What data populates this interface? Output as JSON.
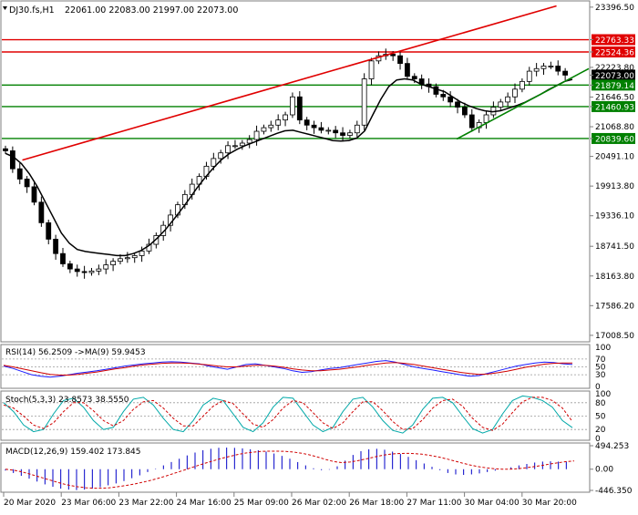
{
  "header": {
    "symbol": "DJ30.fs,H1",
    "ohlc": "22061.00 22083.00 21997.00 22073.00"
  },
  "colors": {
    "frame": "#7f7f7f",
    "candle": "#000000",
    "support": "#008000",
    "resistance": "#e00000",
    "ma": "#000000",
    "rsi": "#1a1aff",
    "rsi_ma": "#d00000",
    "stoch_main": "#00a8a8",
    "stoch_signal": "#d00000",
    "macd_hist": "#0000c8",
    "macd_signal": "#d00000",
    "grid_dotted": "#9a9a9a"
  },
  "chart_data": [
    {
      "type": "candlestick",
      "panel": "main",
      "symbol": "DJ30.fs",
      "timeframe": "H1",
      "last_close": 22073.0,
      "ylim": [
        16900,
        23500
      ],
      "y_ticks": [
        "23396.50",
        "22763.33",
        "22524.36",
        "22223.80",
        "22073.00",
        "21879.14",
        "21646.50",
        "21460.93",
        "21068.80",
        "20839.60",
        "20491.10",
        "19913.80",
        "19336.10",
        "18741.50",
        "18163.80",
        "17586.20",
        "17008.50"
      ],
      "highlighted_levels": [
        {
          "value": 22763.33,
          "label": "22763.33",
          "color": "#e00000",
          "kind": "resistance"
        },
        {
          "value": 22524.36,
          "label": "22524.36",
          "color": "#e00000",
          "kind": "resistance"
        },
        {
          "value": 22073.0,
          "label": "22073.00",
          "color": "#000000",
          "kind": "price"
        },
        {
          "value": 21879.14,
          "label": "21879.14",
          "color": "#008000",
          "kind": "support"
        },
        {
          "value": 21460.93,
          "label": "21460.93",
          "color": "#008000",
          "kind": "support"
        },
        {
          "value": 20839.6,
          "label": "20839.60",
          "color": "#008000",
          "kind": "support"
        }
      ],
      "x_labels": [
        "20 Mar 2020",
        "23 Mar 06:00",
        "23 Mar 22:00",
        "24 Mar 16:00",
        "25 Mar 09:00",
        "26 Mar 02:00",
        "26 Mar 18:00",
        "27 Mar 11:00",
        "30 Mar 04:00",
        "30 Mar 20:00"
      ],
      "trend_lines": [
        {
          "color": "#e00000",
          "from": [
            0.035,
            20420
          ],
          "to": [
            0.945,
            23420
          ]
        },
        {
          "color": "#008000",
          "from": [
            0.775,
            20830
          ],
          "to": [
            1.0,
            22200
          ]
        }
      ],
      "close_path": [
        20600,
        20250,
        20050,
        19900,
        19600,
        19200,
        18880,
        18600,
        18400,
        18300,
        18250,
        18230,
        18260,
        18300,
        18380,
        18450,
        18500,
        18520,
        18560,
        18650,
        18780,
        18950,
        19150,
        19350,
        19550,
        19750,
        19950,
        20100,
        20300,
        20450,
        20560,
        20700,
        20700,
        20750,
        20820,
        20980,
        21050,
        21100,
        21200,
        21300,
        21650,
        21200,
        21100,
        21050,
        21000,
        21000,
        20950,
        20900,
        20950,
        21100,
        22000,
        22350,
        22450,
        22480,
        22450,
        22300,
        22050,
        22000,
        21900,
        21850,
        21700,
        21650,
        21550,
        21450,
        21300,
        21050,
        21150,
        21300,
        21450,
        21550,
        21650,
        21800,
        21950,
        22150,
        22200,
        22250,
        22250,
        22150,
        22073
      ],
      "ma_path": [
        20550,
        20480,
        20350,
        20150,
        19900,
        19600,
        19300,
        19000,
        18800,
        18680,
        18640,
        18620,
        18600,
        18580,
        18560,
        18560,
        18600,
        18660,
        18760,
        18900,
        19060,
        19250,
        19450,
        19660,
        19880,
        20080,
        20260,
        20420,
        20540,
        20630,
        20700,
        20760,
        20820,
        20880,
        20940,
        20990,
        21000,
        20960,
        20920,
        20880,
        20840,
        20800,
        20790,
        20800,
        20850,
        20990,
        21300,
        21600,
        21850,
        21980,
        22000,
        21980,
        21900,
        21850,
        21800,
        21750,
        21650,
        21550,
        21480,
        21420,
        21380,
        21360,
        21380,
        21430,
        21480,
        21540,
        21620,
        21700,
        21790,
        21870,
        21950,
        21990
      ],
      "series": [
        {
          "name": "MA",
          "values_note": "moving average overlay"
        }
      ]
    },
    {
      "type": "line",
      "panel": "RSI",
      "title": "RSI(14) 56.2509 ->MA(9) 59.9453",
      "ylim": [
        0,
        100
      ],
      "levels": [
        100,
        70,
        50,
        30,
        0
      ],
      "series": [
        {
          "name": "RSI(14)",
          "color": "#1a1aff",
          "values": [
            52,
            46,
            38,
            30,
            26,
            24,
            26,
            30,
            34,
            37,
            40,
            44,
            48,
            52,
            55,
            58,
            60,
            62,
            63,
            62,
            60,
            58,
            52,
            48,
            44,
            50,
            56,
            58,
            54,
            50,
            46,
            40,
            36,
            38,
            42,
            46,
            48,
            52,
            56,
            60,
            64,
            66,
            62,
            56,
            50,
            46,
            42,
            38,
            34,
            30,
            26,
            28,
            34,
            40,
            46,
            52,
            56,
            60,
            62,
            61,
            58,
            56
          ]
        },
        {
          "name": "MA(9)",
          "color": "#d00000",
          "values": [
            54,
            50,
            45,
            40,
            35,
            31,
            29,
            29,
            31,
            34,
            37,
            41,
            45,
            48,
            52,
            55,
            57,
            59,
            60,
            60,
            59,
            57,
            55,
            52,
            50,
            50,
            52,
            54,
            54,
            52,
            49,
            45,
            42,
            40,
            40,
            42,
            44,
            47,
            50,
            54,
            57,
            60,
            61,
            59,
            56,
            52,
            48,
            44,
            40,
            36,
            33,
            31,
            32,
            35,
            39,
            44,
            49,
            53,
            57,
            59,
            60,
            60
          ]
        }
      ],
      "last_values": {
        "RSI": 56.2509,
        "MA": 59.9453
      }
    },
    {
      "type": "line",
      "panel": "Stochastic",
      "title": "Stoch(5,3,3) 23.8573 38.5550",
      "ylim": [
        0,
        100
      ],
      "levels": [
        100,
        80,
        50,
        20,
        0
      ],
      "series": [
        {
          "name": "%K",
          "color": "#00a8a8",
          "values": [
            80,
            60,
            30,
            15,
            20,
            55,
            85,
            90,
            70,
            40,
            20,
            25,
            60,
            88,
            92,
            75,
            45,
            20,
            15,
            40,
            75,
            90,
            85,
            55,
            25,
            15,
            35,
            70,
            92,
            90,
            60,
            30,
            15,
            25,
            60,
            88,
            92,
            70,
            40,
            18,
            12,
            30,
            65,
            90,
            92,
            80,
            50,
            22,
            12,
            20,
            55,
            85,
            95,
            92,
            85,
            70,
            40,
            24
          ]
        },
        {
          "name": "%D",
          "color": "#d00000",
          "values": [
            75,
            68,
            50,
            30,
            22,
            35,
            60,
            80,
            80,
            62,
            40,
            28,
            40,
            65,
            82,
            85,
            68,
            45,
            28,
            28,
            50,
            72,
            85,
            78,
            55,
            32,
            25,
            42,
            68,
            85,
            80,
            58,
            35,
            22,
            35,
            60,
            82,
            82,
            62,
            38,
            20,
            22,
            42,
            68,
            85,
            88,
            72,
            45,
            25,
            18,
            32,
            58,
            82,
            92,
            92,
            85,
            68,
            38
          ]
        }
      ],
      "last_values": {
        "K": 23.8573,
        "D": 38.555
      }
    },
    {
      "type": "bar",
      "panel": "MACD",
      "title": "MACD(12,26,9) 159.402 173.845",
      "y_ticks": [
        "494.253",
        "0.00",
        "-446.350"
      ],
      "ylim": [
        -446.35,
        494.253
      ],
      "series": [
        {
          "name": "MACD",
          "color": "#0000c8",
          "values": [
            -30,
            -80,
            -140,
            -200,
            -260,
            -320,
            -370,
            -410,
            -430,
            -440,
            -430,
            -410,
            -380,
            -340,
            -300,
            -250,
            -190,
            -130,
            -60,
            10,
            80,
            150,
            220,
            290,
            350,
            400,
            430,
            450,
            455,
            450,
            440,
            420,
            400,
            370,
            330,
            280,
            220,
            150,
            80,
            20,
            -20,
            -10,
            60,
            180,
            300,
            380,
            420,
            430,
            410,
            370,
            320,
            260,
            190,
            120,
            50,
            -20,
            -80,
            -110,
            -120,
            -110,
            -90,
            -60,
            -30,
            0,
            40,
            80,
            110,
            140,
            160,
            165,
            160,
            159
          ]
        },
        {
          "name": "Signal",
          "color": "#d00000",
          "values": [
            0,
            -20,
            -55,
            -100,
            -150,
            -200,
            -250,
            -300,
            -340,
            -370,
            -390,
            -400,
            -400,
            -390,
            -370,
            -345,
            -315,
            -280,
            -240,
            -195,
            -145,
            -90,
            -35,
            20,
            75,
            130,
            180,
            230,
            270,
            310,
            340,
            360,
            375,
            380,
            380,
            375,
            360,
            335,
            300,
            255,
            205,
            160,
            140,
            150,
            180,
            215,
            255,
            290,
            315,
            330,
            335,
            330,
            315,
            290,
            260,
            220,
            175,
            130,
            90,
            55,
            30,
            10,
            0,
            0,
            10,
            30,
            55,
            80,
            110,
            135,
            160,
            174
          ]
        }
      ],
      "last_values": {
        "MACD": 159.402,
        "Signal": 173.845
      }
    }
  ]
}
